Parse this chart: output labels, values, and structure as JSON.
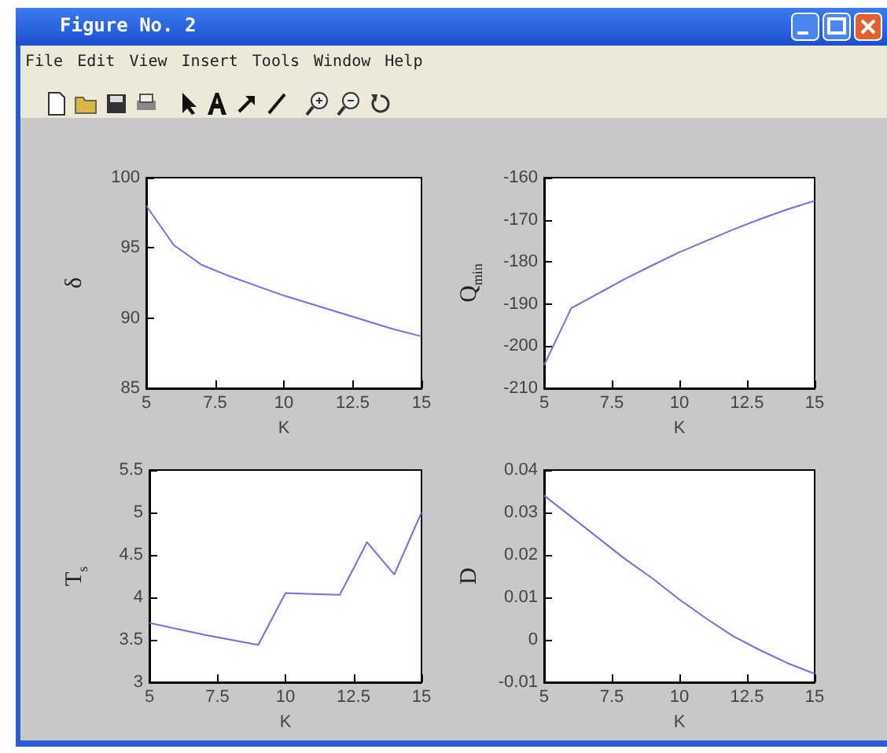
{
  "chart_data": [
    {
      "type": "other",
      "title": "Figure No. 2",
      "annotations": [
        "File",
        "Edit",
        "View",
        "Insert",
        "Tools",
        "Window",
        "Help"
      ]
    },
    {
      "type": "line",
      "xlabel": "K",
      "ylabel": "δ",
      "x": [
        5,
        6,
        7,
        8,
        9,
        10,
        11,
        12,
        13,
        14,
        15
      ],
      "xlim": [
        5,
        15
      ],
      "xticks": [
        5,
        7.5,
        10,
        12.5,
        15
      ],
      "ylim": [
        85,
        100
      ],
      "yticks": [
        85,
        90,
        95,
        100
      ],
      "grid": false,
      "marker": "none",
      "line_style": "solid",
      "series": [
        {
          "color": "#7070e0",
          "values": [
            98,
            95.2,
            93.8,
            93.0,
            92.3,
            91.6,
            91.0,
            90.4,
            89.8,
            89.2,
            88.7
          ]
        }
      ]
    },
    {
      "type": "line",
      "xlabel": "K",
      "ylabel": "Q$_{min}$",
      "x": [
        5,
        6,
        7,
        8,
        9,
        10,
        11,
        12,
        13,
        14,
        15
      ],
      "xlim": [
        5,
        15
      ],
      "xticks": [
        5,
        7.5,
        10,
        12.5,
        15
      ],
      "ylim": [
        -210,
        -160
      ],
      "yticks": [
        -210,
        -200,
        -190,
        -180,
        -170,
        -160
      ],
      "grid": false,
      "marker": "none",
      "line_style": "solid",
      "series": [
        {
          "color": "#7070e0",
          "values": [
            -204.5,
            -191,
            -187.5,
            -184,
            -180.8,
            -177.7,
            -175,
            -172.3,
            -169.8,
            -167.5,
            -165.5
          ]
        }
      ]
    },
    {
      "type": "line",
      "xlabel": "K",
      "ylabel": "T$_{s}$",
      "x": [
        5,
        6,
        7,
        8,
        9,
        10,
        11,
        12,
        13,
        14,
        15
      ],
      "xlim": [
        5,
        15
      ],
      "xticks": [
        5,
        7.5,
        10,
        12.5,
        15
      ],
      "ylim": [
        3,
        5.5
      ],
      "yticks": [
        3,
        3.5,
        4,
        4.5,
        5,
        5.5
      ],
      "grid": false,
      "marker": "none",
      "line_style": "solid",
      "series": [
        {
          "color": "#7070e0",
          "values": [
            3.7,
            3.63,
            3.56,
            3.5,
            3.44,
            4.05,
            4.04,
            4.03,
            4.65,
            4.27,
            5.0
          ]
        }
      ]
    },
    {
      "type": "line",
      "xlabel": "K",
      "ylabel": "D",
      "x": [
        5,
        6,
        7,
        8,
        9,
        10,
        11,
        12,
        13,
        14,
        15
      ],
      "xlim": [
        5,
        15
      ],
      "xticks": [
        5,
        7.5,
        10,
        12.5,
        15
      ],
      "ylim": [
        -0.01,
        0.04
      ],
      "yticks": [
        -0.01,
        0,
        0.01,
        0.02,
        0.03,
        0.04
      ],
      "grid": false,
      "marker": "none",
      "line_style": "solid",
      "series": [
        {
          "color": "#7070e0",
          "values": [
            0.034,
            0.029,
            0.024,
            0.019,
            0.0145,
            0.0095,
            0.005,
            0.0008,
            -0.0025,
            -0.0055,
            -0.008
          ]
        }
      ]
    }
  ]
}
